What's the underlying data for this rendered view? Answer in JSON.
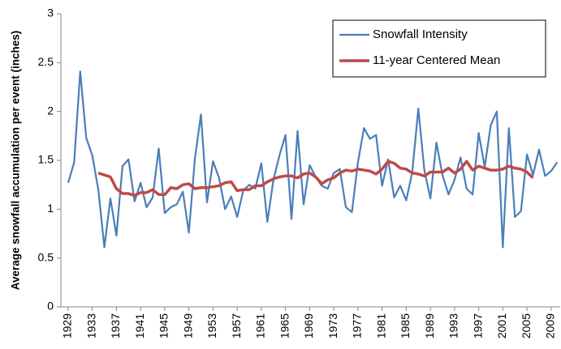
{
  "chart_data": {
    "type": "line",
    "y_label": "Average snowfall accumulation per event (inches)",
    "x": [
      1929,
      1930,
      1931,
      1932,
      1933,
      1934,
      1935,
      1936,
      1937,
      1938,
      1939,
      1940,
      1941,
      1942,
      1943,
      1944,
      1945,
      1946,
      1947,
      1948,
      1949,
      1950,
      1951,
      1952,
      1953,
      1954,
      1955,
      1956,
      1957,
      1958,
      1959,
      1960,
      1961,
      1962,
      1963,
      1964,
      1965,
      1966,
      1967,
      1968,
      1969,
      1970,
      1971,
      1972,
      1973,
      1974,
      1975,
      1976,
      1977,
      1978,
      1979,
      1980,
      1981,
      1982,
      1983,
      1984,
      1985,
      1986,
      1987,
      1988,
      1989,
      1990,
      1991,
      1992,
      1993,
      1994,
      1995,
      1996,
      1997,
      1998,
      1999,
      2000,
      2001,
      2002,
      2003,
      2004,
      2005,
      2006,
      2007,
      2008,
      2009,
      2010
    ],
    "series": [
      {
        "name": "Snowfall Intensity",
        "color": "#4a7ebb",
        "values": [
          1.27,
          1.48,
          2.41,
          1.73,
          1.55,
          1.2,
          0.61,
          1.11,
          0.73,
          1.44,
          1.51,
          1.08,
          1.27,
          1.02,
          1.12,
          1.62,
          0.96,
          1.02,
          1.05,
          1.18,
          0.76,
          1.52,
          1.97,
          1.07,
          1.49,
          1.32,
          1.0,
          1.13,
          0.92,
          1.19,
          1.25,
          1.21,
          1.47,
          0.87,
          1.3,
          1.55,
          1.76,
          0.9,
          1.8,
          1.05,
          1.45,
          1.33,
          1.24,
          1.21,
          1.37,
          1.41,
          1.02,
          0.97,
          1.48,
          1.83,
          1.72,
          1.76,
          1.24,
          1.51,
          1.12,
          1.24,
          1.09,
          1.38,
          2.03,
          1.4,
          1.11,
          1.68,
          1.35,
          1.15,
          1.3,
          1.53,
          1.21,
          1.15,
          1.78,
          1.43,
          1.86,
          2.0,
          0.61,
          1.83,
          0.92,
          0.98,
          1.56,
          1.35,
          1.61,
          1.34,
          1.39,
          1.48
        ]
      },
      {
        "name": "11-year Centered Mean",
        "color": "#be4b48",
        "values": [
          null,
          null,
          null,
          null,
          null,
          1.37,
          1.35,
          1.33,
          1.21,
          1.16,
          1.16,
          1.14,
          1.17,
          1.17,
          1.2,
          1.15,
          1.15,
          1.22,
          1.21,
          1.25,
          1.26,
          1.21,
          1.22,
          1.22,
          1.23,
          1.24,
          1.27,
          1.28,
          1.19,
          1.2,
          1.2,
          1.24,
          1.24,
          1.28,
          1.31,
          1.33,
          1.34,
          1.34,
          1.32,
          1.36,
          1.37,
          1.33,
          1.26,
          1.3,
          1.32,
          1.37,
          1.4,
          1.39,
          1.41,
          1.4,
          1.39,
          1.36,
          1.41,
          1.49,
          1.47,
          1.42,
          1.41,
          1.37,
          1.36,
          1.34,
          1.38,
          1.38,
          1.38,
          1.42,
          1.37,
          1.41,
          1.49,
          1.4,
          1.44,
          1.42,
          1.4,
          1.4,
          1.41,
          1.44,
          1.42,
          1.41,
          1.38,
          1.32,
          null,
          null,
          null,
          null
        ]
      }
    ],
    "xlim": [
      1927.8,
      2010.5
    ],
    "xticks": [
      1929,
      1933,
      1937,
      1941,
      1945,
      1949,
      1953,
      1957,
      1961,
      1965,
      1969,
      1973,
      1977,
      1981,
      1985,
      1989,
      1993,
      1997,
      2001,
      2005,
      2009
    ],
    "ylim": [
      0,
      3
    ],
    "yticks": [
      0,
      0.5,
      1,
      1.5,
      2,
      2.5,
      3
    ],
    "grid": false,
    "legend": "top-right"
  }
}
